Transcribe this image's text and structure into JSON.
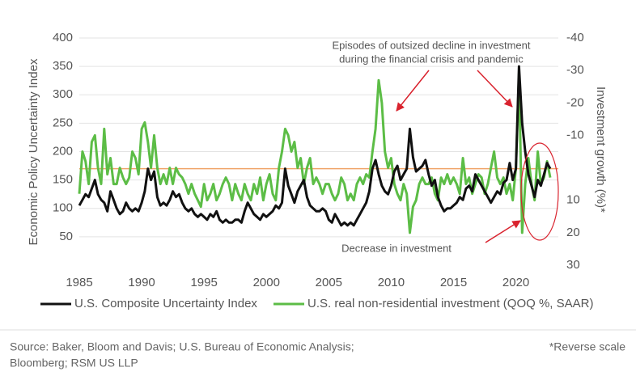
{
  "chart_data": {
    "type": "line",
    "y_label": "Economic Policy Uncertainty Index",
    "y2_label": "Investment growth (%)*",
    "x": [
      1985,
      1985.25,
      1985.5,
      1985.75,
      1986,
      1986.25,
      1986.5,
      1986.75,
      1987,
      1987.25,
      1987.5,
      1987.75,
      1988,
      1988.25,
      1988.5,
      1988.75,
      1989,
      1989.25,
      1989.5,
      1989.75,
      1990,
      1990.25,
      1990.5,
      1990.75,
      1991,
      1991.25,
      1991.5,
      1991.75,
      1992,
      1992.25,
      1992.5,
      1992.75,
      1993,
      1993.25,
      1993.5,
      1993.75,
      1994,
      1994.25,
      1994.5,
      1994.75,
      1995,
      1995.25,
      1995.5,
      1995.75,
      1996,
      1996.25,
      1996.5,
      1996.75,
      1997,
      1997.25,
      1997.5,
      1997.75,
      1998,
      1998.25,
      1998.5,
      1998.75,
      1999,
      1999.25,
      1999.5,
      1999.75,
      2000,
      2000.25,
      2000.5,
      2000.75,
      2001,
      2001.25,
      2001.5,
      2001.75,
      2002,
      2002.25,
      2002.5,
      2002.75,
      2003,
      2003.25,
      2003.5,
      2003.75,
      2004,
      2004.25,
      2004.5,
      2004.75,
      2005,
      2005.25,
      2005.5,
      2005.75,
      2006,
      2006.25,
      2006.5,
      2006.75,
      2007,
      2007.25,
      2007.5,
      2007.75,
      2008,
      2008.25,
      2008.5,
      2008.75,
      2009,
      2009.25,
      2009.5,
      2009.75,
      2010,
      2010.25,
      2010.5,
      2010.75,
      2011,
      2011.25,
      2011.5,
      2011.75,
      2012,
      2012.25,
      2012.5,
      2012.75,
      2013,
      2013.25,
      2013.5,
      2013.75,
      2014,
      2014.25,
      2014.5,
      2014.75,
      2015,
      2015.25,
      2015.5,
      2015.75,
      2016,
      2016.25,
      2016.5,
      2016.75,
      2017,
      2017.25,
      2017.5,
      2017.75,
      2018,
      2018.25,
      2018.5,
      2018.75,
      2019,
      2019.25,
      2019.5,
      2019.75,
      2020,
      2020.25,
      2020.5,
      2020.75,
      2021,
      2021.25,
      2021.5,
      2021.75,
      2022,
      2022.25,
      2022.5,
      2022.75
    ],
    "series": [
      {
        "name": "U.S. Composite Uncertainty Index",
        "color": "#111111",
        "axis": "y",
        "values": [
          105,
          115,
          125,
          120,
          135,
          150,
          125,
          115,
          110,
          95,
          130,
          115,
          100,
          90,
          95,
          110,
          100,
          95,
          100,
          95,
          110,
          130,
          170,
          150,
          165,
          120,
          105,
          110,
          105,
          115,
          130,
          120,
          125,
          110,
          100,
          95,
          100,
          90,
          85,
          90,
          85,
          80,
          90,
          85,
          95,
          80,
          75,
          80,
          75,
          75,
          80,
          80,
          75,
          95,
          110,
          100,
          90,
          85,
          80,
          90,
          85,
          90,
          95,
          105,
          100,
          110,
          170,
          140,
          125,
          110,
          130,
          140,
          150,
          120,
          105,
          100,
          95,
          95,
          100,
          95,
          80,
          75,
          90,
          80,
          70,
          75,
          70,
          75,
          70,
          80,
          90,
          100,
          110,
          130,
          170,
          185,
          160,
          140,
          130,
          125,
          140,
          165,
          175,
          150,
          160,
          170,
          240,
          190,
          165,
          170,
          175,
          185,
          160,
          140,
          150,
          120,
          105,
          95,
          100,
          100,
          105,
          110,
          120,
          115,
          135,
          140,
          130,
          160,
          150,
          140,
          130,
          120,
          110,
          120,
          130,
          125,
          145,
          150,
          180,
          150,
          170,
          350,
          250,
          200,
          160,
          140,
          120,
          150,
          140,
          160,
          180,
          170
        ]
      },
      {
        "name": "U.S. real non-residential investment (QOQ %, SAAR)",
        "color": "#5cbd46",
        "axis": "y2",
        "values": [
          8,
          -5,
          -2,
          5,
          -8,
          -10,
          0,
          5,
          -12,
          2,
          -3,
          5,
          5,
          0,
          3,
          5,
          3,
          -5,
          -3,
          2,
          -12,
          -14,
          -8,
          0,
          -10,
          0,
          5,
          2,
          5,
          0,
          5,
          0,
          2,
          3,
          5,
          8,
          5,
          8,
          10,
          12,
          5,
          10,
          8,
          5,
          10,
          8,
          5,
          3,
          5,
          10,
          5,
          8,
          10,
          5,
          8,
          10,
          5,
          8,
          3,
          10,
          5,
          2,
          8,
          10,
          0,
          -5,
          -12,
          -10,
          -5,
          -8,
          0,
          -3,
          5,
          0,
          -3,
          5,
          3,
          5,
          8,
          5,
          5,
          8,
          10,
          8,
          3,
          5,
          10,
          8,
          10,
          5,
          3,
          5,
          2,
          3,
          -5,
          -12,
          -27,
          -20,
          -5,
          0,
          -3,
          5,
          8,
          10,
          5,
          8,
          20,
          12,
          10,
          5,
          3,
          5,
          5,
          3,
          8,
          10,
          3,
          5,
          2,
          5,
          3,
          5,
          8,
          -3,
          5,
          3,
          8,
          5,
          2,
          3,
          8,
          5,
          0,
          -5,
          3,
          5,
          3,
          8,
          5,
          10,
          0,
          -29,
          20,
          5,
          -3,
          5,
          10,
          -5,
          5,
          3,
          -2,
          3
        ]
      }
    ],
    "xlim": [
      1985,
      2023.4
    ],
    "xticks": [
      1985,
      1990,
      1995,
      2000,
      2005,
      2010,
      2015,
      2020
    ],
    "ylim": [
      0,
      400
    ],
    "yticks": [
      50,
      100,
      150,
      200,
      250,
      300,
      350,
      400
    ],
    "y2lim": [
      30,
      -40
    ],
    "y2ticks": [
      -40,
      -30,
      -20,
      -10,
      10,
      20,
      30
    ],
    "grid": true,
    "reference_line": {
      "value": 170,
      "color": "#f0a468"
    },
    "annotations": [
      {
        "lines": [
          "Episodes of outsized decline in investment",
          "during the financial crisis and pandemic"
        ]
      },
      {
        "lines": [
          "Decrease in investment"
        ]
      }
    ],
    "footnote": [
      "Source: Baker, Bloom and Davis; U.S. Bureau of Economic Analysis;",
      "Bloomberg; RSM US LLP"
    ],
    "reverse_note": "*Reverse scale"
  }
}
